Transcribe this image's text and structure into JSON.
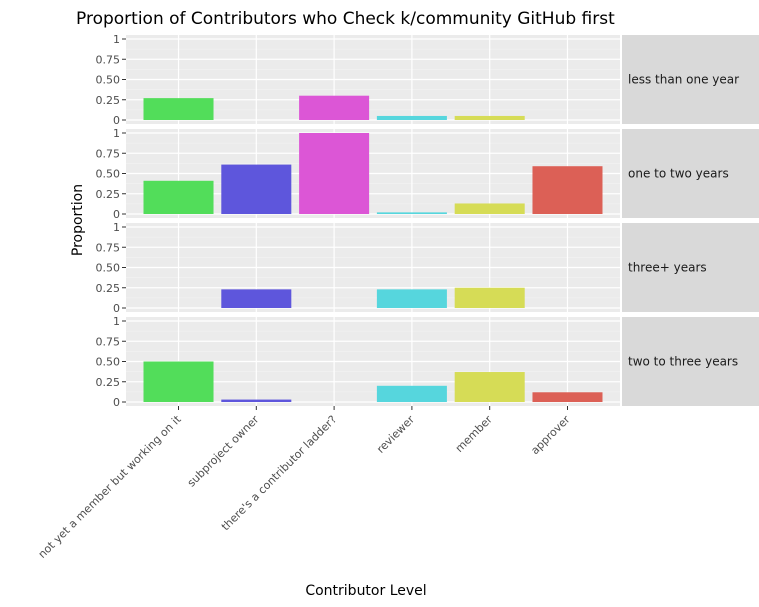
{
  "chart_data": {
    "type": "bar",
    "title": "Proportion of Contributors who Check k/community GitHub first",
    "xlabel": "Contributor Level",
    "ylabel": "Proportion",
    "ylim": [
      0,
      1
    ],
    "yticks": [
      0,
      0.25,
      0.5,
      0.75,
      1
    ],
    "ytick_labels": [
      "0",
      "0.25",
      "0.50",
      "0.75",
      "1"
    ],
    "grid": true,
    "legend": "none",
    "categories": [
      "not yet a member but working on it",
      "subproject owner",
      "there's a contributor ladder?",
      "reviewer",
      "member",
      "approver"
    ],
    "colors": [
      "#52dd5a",
      "#5e56dc",
      "#dc56d6",
      "#56d6dd",
      "#d6dc56",
      "#dc6056"
    ],
    "facets": [
      {
        "label": "less than one year",
        "values": [
          0.27,
          0,
          0.3,
          0.05,
          0.05,
          0
        ]
      },
      {
        "label": "one to two years",
        "values": [
          0.41,
          0.61,
          1.0,
          0.02,
          0.13,
          0.59
        ]
      },
      {
        "label": "three+ years",
        "values": [
          0,
          0.23,
          0,
          0.23,
          0.25,
          0
        ]
      },
      {
        "label": "two to three years",
        "values": [
          0.5,
          0.03,
          0,
          0.2,
          0.37,
          0.12
        ]
      }
    ]
  }
}
